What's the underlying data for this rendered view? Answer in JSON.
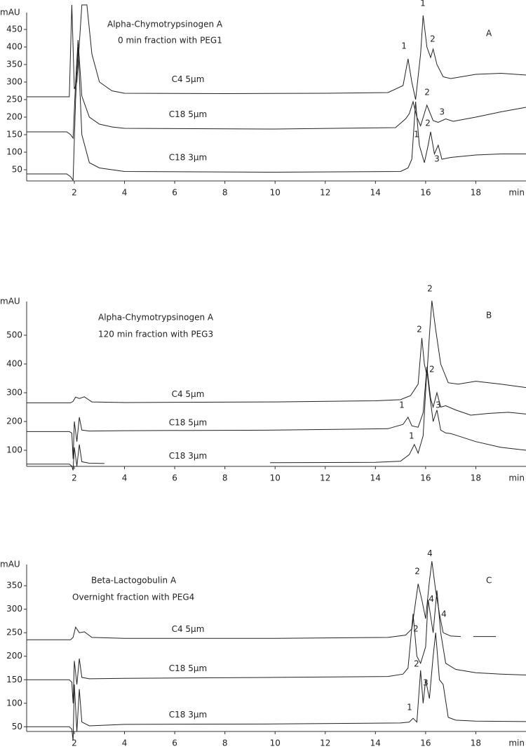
{
  "chart_data": [
    {
      "type": "line",
      "title": "Alpha-Chymotrypsinogen A",
      "subtitle": "0 min fraction with PEG1",
      "panel_label": "A",
      "ylabel": "mAU",
      "xlabel": "min",
      "xlim": [
        0.1,
        20
      ],
      "ylim": [
        18,
        498
      ],
      "xticks": [
        2,
        4,
        6,
        8,
        10,
        12,
        14,
        16,
        18
      ],
      "yticks": [
        50,
        100,
        150,
        200,
        250,
        300,
        350,
        400,
        450
      ],
      "series": [
        {
          "name": "C4 5μm",
          "color": "#222222",
          "x": [
            0.1,
            1.8,
            1.9,
            2.0,
            2.1,
            2.3,
            2.5,
            2.7,
            3.0,
            3.5,
            4,
            8,
            12,
            14.5,
            15.1,
            15.3,
            15.45,
            15.6,
            15.8,
            15.9,
            16.05,
            16.2,
            16.3,
            16.45,
            16.7,
            17,
            18,
            19,
            20
          ],
          "values": [
            258,
            258,
            520,
            280,
            300,
            520,
            520,
            380,
            300,
            275,
            268,
            267,
            268,
            270,
            290,
            366,
            300,
            250,
            380,
            490,
            400,
            370,
            394,
            350,
            315,
            310,
            322,
            325,
            320
          ]
        },
        {
          "name": "C18 5μm",
          "color": "#222222",
          "x": [
            0.1,
            1.7,
            1.85,
            1.95,
            2.05,
            2.15,
            2.3,
            2.6,
            3,
            3.5,
            4,
            10,
            14.8,
            15.2,
            15.35,
            15.5,
            15.65,
            15.8,
            16.05,
            16.3,
            16.5,
            16.8,
            17.1,
            18,
            19,
            20
          ],
          "values": [
            158,
            158,
            150,
            140,
            300,
            420,
            260,
            200,
            180,
            172,
            168,
            166,
            170,
            195,
            210,
            244,
            200,
            175,
            234,
            190,
            185,
            195,
            188,
            200,
            215,
            228
          ]
        },
        {
          "name": "C18 3μm",
          "color": "#222222",
          "x": [
            0.1,
            1.7,
            1.85,
            1.95,
            2.05,
            2.15,
            2.3,
            2.6,
            3,
            4,
            10,
            15,
            15.3,
            15.45,
            15.6,
            15.75,
            15.95,
            16.1,
            16.2,
            16.35,
            16.5,
            16.65,
            17,
            18,
            19,
            20
          ],
          "values": [
            38,
            38,
            30,
            20,
            250,
            400,
            150,
            70,
            55,
            45,
            43,
            45,
            55,
            80,
            244,
            120,
            70,
            120,
            158,
            95,
            120,
            80,
            85,
            92,
            95,
            95
          ]
        }
      ],
      "annotations": [
        {
          "text": "1",
          "x": 15.89,
          "y": 524
        },
        {
          "text": "1",
          "x": 15.14,
          "y": 402
        },
        {
          "text": "2",
          "x": 16.28,
          "y": 422
        },
        {
          "text": "2",
          "x": 16.06,
          "y": 270
        },
        {
          "text": "3",
          "x": 16.65,
          "y": 214
        },
        {
          "text": "2",
          "x": 16.09,
          "y": 182
        },
        {
          "text": "1",
          "x": 15.64,
          "y": 150
        },
        {
          "text": "3",
          "x": 16.45,
          "y": 80
        }
      ]
    },
    {
      "type": "line",
      "title": "Alpha-Chymotrypsinogen A",
      "subtitle": "120 min fraction with PEG3",
      "panel_label": "B",
      "ylabel": "mAU",
      "xlabel": "min",
      "xlim": [
        0.1,
        20
      ],
      "ylim": [
        44,
        617
      ],
      "xticks": [
        2,
        4,
        6,
        8,
        10,
        12,
        14,
        16,
        18
      ],
      "yticks": [
        100,
        200,
        300,
        400,
        500
      ],
      "series": [
        {
          "name": "C4 5μm",
          "color": "#222222",
          "x": [
            0.1,
            1.85,
            1.95,
            2.05,
            2.2,
            2.4,
            2.7,
            4,
            10,
            14,
            15,
            15.4,
            15.7,
            15.85,
            15.95,
            16.05,
            16.15,
            16.25,
            16.4,
            16.6,
            16.9,
            17.3,
            18,
            19,
            20
          ],
          "values": [
            265,
            265,
            270,
            285,
            280,
            286,
            268,
            266,
            268,
            272,
            276,
            290,
            330,
            490,
            400,
            360,
            500,
            620,
            520,
            400,
            335,
            330,
            340,
            330,
            318
          ]
        },
        {
          "name": "C18 5μm",
          "color": "#222222",
          "x": [
            0.1,
            1.8,
            1.9,
            1.95,
            2.0,
            2.1,
            2.2,
            2.3,
            2.6,
            4,
            10,
            14.5,
            15.1,
            15.3,
            15.45,
            15.7,
            15.9,
            16.05,
            16.2,
            16.3,
            16.45,
            16.6,
            16.8,
            17.2,
            17.8,
            18.5,
            19.3,
            20
          ],
          "values": [
            165,
            165,
            160,
            70,
            200,
            130,
            215,
            170,
            167,
            168,
            170,
            175,
            190,
            215,
            185,
            180,
            230,
            390,
            280,
            250,
            300,
            250,
            255,
            240,
            222,
            228,
            232,
            226
          ]
        },
        {
          "name": "C18 3μm",
          "color": "#222222",
          "x": [
            0.1,
            1.8,
            1.9,
            1.95,
            2.0,
            2.1,
            2.2,
            2.3,
            2.6,
            3.2,
            6,
            9.8,
            14,
            15,
            15.35,
            15.55,
            15.7,
            15.9,
            16.05,
            16.15,
            16.3,
            16.45,
            16.6,
            16.8,
            17,
            18,
            19,
            20
          ],
          "values": [
            52,
            52,
            45,
            30,
            110,
            45,
            120,
            60,
            55,
            54,
            null,
            57,
            58,
            62,
            85,
            120,
            90,
            150,
            380,
            300,
            200,
            240,
            170,
            160,
            158,
            130,
            110,
            100
          ]
        }
      ],
      "annotations": [
        {
          "text": "2",
          "x": 16.17,
          "y": 661
        },
        {
          "text": "2",
          "x": 15.75,
          "y": 520
        },
        {
          "text": "2",
          "x": 16.25,
          "y": 381
        },
        {
          "text": "1",
          "x": 15.05,
          "y": 256
        },
        {
          "text": "3",
          "x": 16.5,
          "y": 256
        },
        {
          "text": "1",
          "x": 15.44,
          "y": 149
        }
      ]
    },
    {
      "type": "line",
      "title": "Beta-Lactogobulin A",
      "subtitle": "Overnight fraction with PEG4",
      "panel_label": "C",
      "ylabel": "mAU",
      "xlabel": "min",
      "xlim": [
        0.1,
        20
      ],
      "ylim": [
        40,
        395
      ],
      "xticks": [
        2,
        4,
        6,
        8,
        10,
        12,
        14,
        16,
        18
      ],
      "yticks": [
        50,
        100,
        150,
        200,
        250,
        300,
        350
      ],
      "series": [
        {
          "name": "C4 5μm",
          "color": "#222222",
          "x": [
            0.1,
            1.85,
            1.95,
            2.05,
            2.2,
            2.4,
            2.7,
            4,
            10,
            14.5,
            15.2,
            15.45,
            15.7,
            15.85,
            16.0,
            16.15,
            16.25,
            16.4,
            16.55,
            16.7,
            17,
            17.4,
            17.6,
            17.9,
            18.8
          ],
          "values": [
            235,
            235,
            240,
            262,
            250,
            252,
            240,
            238,
            238,
            240,
            245,
            258,
            354,
            320,
            280,
            360,
            402,
            340,
            290,
            250,
            243,
            242,
            null,
            242,
            242
          ]
        },
        {
          "name": "C18 5μm",
          "color": "#222222",
          "x": [
            0.1,
            1.8,
            1.9,
            1.95,
            2.0,
            2.1,
            2.2,
            2.3,
            2.6,
            4,
            10,
            14.5,
            15.1,
            15.3,
            15.5,
            15.65,
            15.8,
            16.0,
            16.1,
            16.3,
            16.45,
            16.6,
            16.8,
            17.2,
            18,
            19,
            20
          ],
          "values": [
            150,
            150,
            145,
            100,
            190,
            140,
            195,
            155,
            152,
            153,
            155,
            157,
            162,
            175,
            290,
            200,
            185,
            220,
            320,
            250,
            340,
            250,
            185,
            172,
            165,
            162,
            160
          ]
        },
        {
          "name": "C18 3μm",
          "color": "#222222",
          "x": [
            0.1,
            1.8,
            1.9,
            1.95,
            2.0,
            2.1,
            2.2,
            2.3,
            2.6,
            4,
            10,
            15,
            15.35,
            15.5,
            15.65,
            15.8,
            15.9,
            16.0,
            16.15,
            16.3,
            16.4,
            16.55,
            16.7,
            16.9,
            17.2,
            18,
            20
          ],
          "values": [
            50,
            50,
            45,
            20,
            140,
            40,
            130,
            60,
            52,
            55,
            56,
            58,
            60,
            68,
            60,
            170,
            100,
            150,
            110,
            200,
            250,
            150,
            140,
            70,
            64,
            62,
            61
          ]
        }
      ],
      "annotations": [
        {
          "text": "4",
          "x": 16.17,
          "y": 418
        },
        {
          "text": "2",
          "x": 15.67,
          "y": 380
        },
        {
          "text": "4",
          "x": 16.23,
          "y": 321
        },
        {
          "text": "4",
          "x": 16.73,
          "y": 289
        },
        {
          "text": "2",
          "x": 15.61,
          "y": 258
        },
        {
          "text": "2",
          "x": 15.64,
          "y": 183
        },
        {
          "text": "3",
          "x": 16.0,
          "y": 143
        },
        {
          "text": "1",
          "x": 15.36,
          "y": 91
        }
      ]
    }
  ]
}
